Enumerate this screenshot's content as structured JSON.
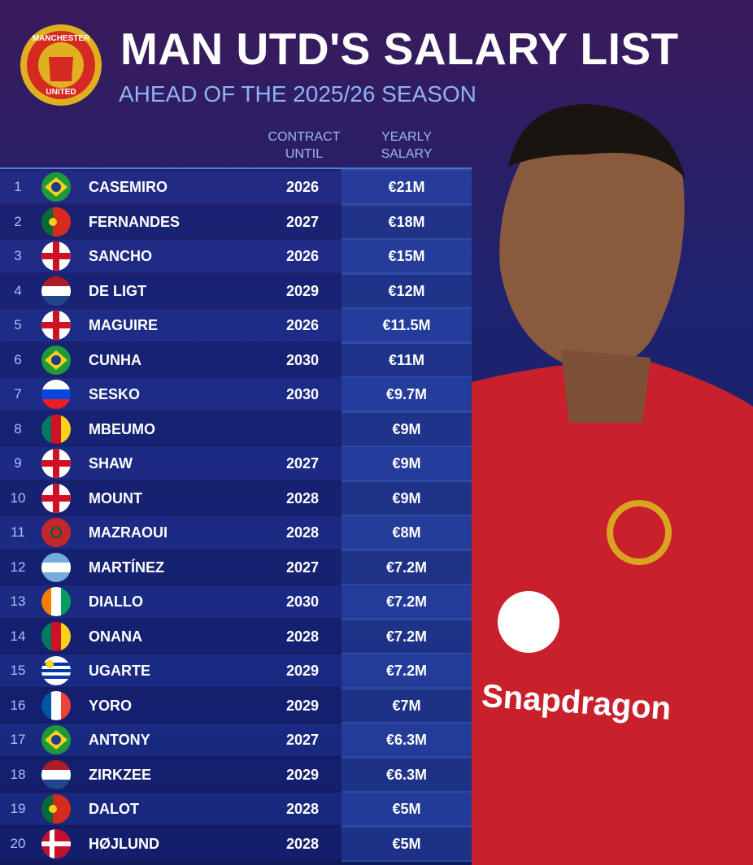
{
  "header": {
    "title": "MAN UTD'S SALARY LIST",
    "subtitle": "AHEAD OF THE 2025/26 SEASON",
    "logo_top": "MANCHESTER",
    "logo_bottom": "UNITED"
  },
  "table": {
    "columns": [
      "CONTRACT\nUNTIL",
      "YEARLY\nSALARY"
    ],
    "rows": [
      [
        1,
        "CASEMIRO",
        2026,
        "€21M"
      ],
      [
        2,
        "FERNANDES",
        2027,
        "€18M"
      ],
      [
        3,
        "SANCHO",
        2026,
        "€15M"
      ],
      [
        4,
        "DE LIGT",
        2029,
        "€12M"
      ],
      [
        5,
        "MAGUIRE",
        2026,
        "€11.5M"
      ],
      [
        6,
        "CUNHA",
        2030,
        "€11M"
      ],
      [
        7,
        "SESKO",
        2030,
        "€9.7M"
      ],
      [
        8,
        "MBEUMO",
        null,
        "€9M"
      ],
      [
        9,
        "SHAW",
        2027,
        "€9M"
      ],
      [
        10,
        "MOUNT",
        2028,
        "€9M"
      ],
      [
        11,
        "MAZRAOUI",
        2028,
        "€8M"
      ],
      [
        12,
        "MARTÍNEZ",
        2027,
        "€7.2M"
      ],
      [
        13,
        "DIALLO",
        2030,
        "€7.2M"
      ],
      [
        14,
        "ONANA",
        2028,
        "€7.2M"
      ],
      [
        15,
        "UGARTE",
        2029,
        "€7.2M"
      ],
      [
        16,
        "YORO",
        2029,
        "€7M"
      ],
      [
        17,
        "ANTONY",
        2027,
        "€6.3M"
      ],
      [
        18,
        "ZIRKZEE",
        2029,
        "€6.3M"
      ],
      [
        19,
        "DALOT",
        2028,
        "€5M"
      ],
      [
        20,
        "HØJLUND",
        2028,
        "€5M"
      ]
    ]
  },
  "photo": {
    "sponsor": "Snapdragon"
  }
}
